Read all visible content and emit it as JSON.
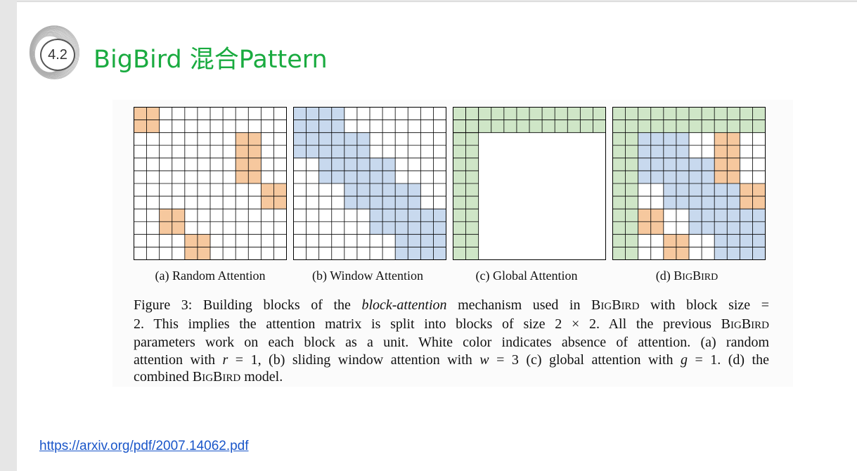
{
  "slide": {
    "section_number": "4.2",
    "title": "BigBird 混合Pattern",
    "link": "https://arxiv.org/pdf/2007.14062.pdf"
  },
  "colors": {
    "title": "#1aab40",
    "random": "#f6c89e",
    "window": "#c8d9ee",
    "global": "#cfe6c7",
    "grid_line": "#000000",
    "link": "#1a56c9"
  },
  "figure": {
    "grid_size": 12,
    "panels": [
      {
        "id": "random",
        "caption": "(a) Random Attention",
        "cells": [
          {
            "r": 0,
            "c": 0,
            "t": "random"
          },
          {
            "r": 0,
            "c": 1,
            "t": "random"
          },
          {
            "r": 1,
            "c": 0,
            "t": "random"
          },
          {
            "r": 1,
            "c": 1,
            "t": "random"
          },
          {
            "r": 2,
            "c": 8,
            "t": "random"
          },
          {
            "r": 2,
            "c": 9,
            "t": "random"
          },
          {
            "r": 3,
            "c": 8,
            "t": "random"
          },
          {
            "r": 3,
            "c": 9,
            "t": "random"
          },
          {
            "r": 4,
            "c": 8,
            "t": "random"
          },
          {
            "r": 4,
            "c": 9,
            "t": "random"
          },
          {
            "r": 5,
            "c": 8,
            "t": "random"
          },
          {
            "r": 5,
            "c": 9,
            "t": "random"
          },
          {
            "r": 6,
            "c": 10,
            "t": "random"
          },
          {
            "r": 6,
            "c": 11,
            "t": "random"
          },
          {
            "r": 7,
            "c": 10,
            "t": "random"
          },
          {
            "r": 7,
            "c": 11,
            "t": "random"
          },
          {
            "r": 8,
            "c": 2,
            "t": "random"
          },
          {
            "r": 8,
            "c": 3,
            "t": "random"
          },
          {
            "r": 9,
            "c": 2,
            "t": "random"
          },
          {
            "r": 9,
            "c": 3,
            "t": "random"
          },
          {
            "r": 10,
            "c": 4,
            "t": "random"
          },
          {
            "r": 10,
            "c": 5,
            "t": "random"
          },
          {
            "r": 11,
            "c": 4,
            "t": "random"
          },
          {
            "r": 11,
            "c": 5,
            "t": "random"
          }
        ]
      },
      {
        "id": "window",
        "caption": "(b) Window Attention",
        "cells": [
          {
            "r": 0,
            "c": 0,
            "t": "window"
          },
          {
            "r": 0,
            "c": 1,
            "t": "window"
          },
          {
            "r": 0,
            "c": 2,
            "t": "window"
          },
          {
            "r": 0,
            "c": 3,
            "t": "window"
          },
          {
            "r": 1,
            "c": 0,
            "t": "window"
          },
          {
            "r": 1,
            "c": 1,
            "t": "window"
          },
          {
            "r": 1,
            "c": 2,
            "t": "window"
          },
          {
            "r": 1,
            "c": 3,
            "t": "window"
          },
          {
            "r": 2,
            "c": 0,
            "t": "window"
          },
          {
            "r": 2,
            "c": 1,
            "t": "window"
          },
          {
            "r": 2,
            "c": 2,
            "t": "window"
          },
          {
            "r": 2,
            "c": 3,
            "t": "window"
          },
          {
            "r": 2,
            "c": 4,
            "t": "window"
          },
          {
            "r": 2,
            "c": 5,
            "t": "window"
          },
          {
            "r": 3,
            "c": 0,
            "t": "window"
          },
          {
            "r": 3,
            "c": 1,
            "t": "window"
          },
          {
            "r": 3,
            "c": 2,
            "t": "window"
          },
          {
            "r": 3,
            "c": 3,
            "t": "window"
          },
          {
            "r": 3,
            "c": 4,
            "t": "window"
          },
          {
            "r": 3,
            "c": 5,
            "t": "window"
          },
          {
            "r": 4,
            "c": 2,
            "t": "window"
          },
          {
            "r": 4,
            "c": 3,
            "t": "window"
          },
          {
            "r": 4,
            "c": 4,
            "t": "window"
          },
          {
            "r": 4,
            "c": 5,
            "t": "window"
          },
          {
            "r": 4,
            "c": 6,
            "t": "window"
          },
          {
            "r": 4,
            "c": 7,
            "t": "window"
          },
          {
            "r": 5,
            "c": 2,
            "t": "window"
          },
          {
            "r": 5,
            "c": 3,
            "t": "window"
          },
          {
            "r": 5,
            "c": 4,
            "t": "window"
          },
          {
            "r": 5,
            "c": 5,
            "t": "window"
          },
          {
            "r": 5,
            "c": 6,
            "t": "window"
          },
          {
            "r": 5,
            "c": 7,
            "t": "window"
          },
          {
            "r": 6,
            "c": 4,
            "t": "window"
          },
          {
            "r": 6,
            "c": 5,
            "t": "window"
          },
          {
            "r": 6,
            "c": 6,
            "t": "window"
          },
          {
            "r": 6,
            "c": 7,
            "t": "window"
          },
          {
            "r": 6,
            "c": 8,
            "t": "window"
          },
          {
            "r": 6,
            "c": 9,
            "t": "window"
          },
          {
            "r": 7,
            "c": 4,
            "t": "window"
          },
          {
            "r": 7,
            "c": 5,
            "t": "window"
          },
          {
            "r": 7,
            "c": 6,
            "t": "window"
          },
          {
            "r": 7,
            "c": 7,
            "t": "window"
          },
          {
            "r": 7,
            "c": 8,
            "t": "window"
          },
          {
            "r": 7,
            "c": 9,
            "t": "window"
          },
          {
            "r": 8,
            "c": 6,
            "t": "window"
          },
          {
            "r": 8,
            "c": 7,
            "t": "window"
          },
          {
            "r": 8,
            "c": 8,
            "t": "window"
          },
          {
            "r": 8,
            "c": 9,
            "t": "window"
          },
          {
            "r": 8,
            "c": 10,
            "t": "window"
          },
          {
            "r": 8,
            "c": 11,
            "t": "window"
          },
          {
            "r": 9,
            "c": 6,
            "t": "window"
          },
          {
            "r": 9,
            "c": 7,
            "t": "window"
          },
          {
            "r": 9,
            "c": 8,
            "t": "window"
          },
          {
            "r": 9,
            "c": 9,
            "t": "window"
          },
          {
            "r": 9,
            "c": 10,
            "t": "window"
          },
          {
            "r": 9,
            "c": 11,
            "t": "window"
          },
          {
            "r": 10,
            "c": 8,
            "t": "window"
          },
          {
            "r": 10,
            "c": 9,
            "t": "window"
          },
          {
            "r": 10,
            "c": 10,
            "t": "window"
          },
          {
            "r": 10,
            "c": 11,
            "t": "window"
          },
          {
            "r": 11,
            "c": 8,
            "t": "window"
          },
          {
            "r": 11,
            "c": 9,
            "t": "window"
          },
          {
            "r": 11,
            "c": 10,
            "t": "window"
          },
          {
            "r": 11,
            "c": 11,
            "t": "window"
          }
        ]
      },
      {
        "id": "global",
        "caption": "(c) Global Attention",
        "global_blocks": 1,
        "cells": []
      },
      {
        "id": "bigbird",
        "caption_prefix": "(d) B",
        "caption_sc1": "IG",
        "caption_mid": "B",
        "caption_sc2": "IRD",
        "global_blocks": 1,
        "cells": [
          {
            "r": 0,
            "c": 2,
            "t": "window"
          },
          {
            "r": 0,
            "c": 3,
            "t": "window"
          },
          {
            "r": 1,
            "c": 2,
            "t": "window"
          },
          {
            "r": 1,
            "c": 3,
            "t": "window"
          },
          {
            "r": 2,
            "c": 2,
            "t": "window"
          },
          {
            "r": 2,
            "c": 3,
            "t": "window"
          },
          {
            "r": 2,
            "c": 4,
            "t": "window"
          },
          {
            "r": 2,
            "c": 5,
            "t": "window"
          },
          {
            "r": 3,
            "c": 2,
            "t": "window"
          },
          {
            "r": 3,
            "c": 3,
            "t": "window"
          },
          {
            "r": 3,
            "c": 4,
            "t": "window"
          },
          {
            "r": 3,
            "c": 5,
            "t": "window"
          },
          {
            "r": 4,
            "c": 2,
            "t": "window"
          },
          {
            "r": 4,
            "c": 3,
            "t": "window"
          },
          {
            "r": 4,
            "c": 4,
            "t": "window"
          },
          {
            "r": 4,
            "c": 5,
            "t": "window"
          },
          {
            "r": 4,
            "c": 6,
            "t": "window"
          },
          {
            "r": 4,
            "c": 7,
            "t": "window"
          },
          {
            "r": 5,
            "c": 2,
            "t": "window"
          },
          {
            "r": 5,
            "c": 3,
            "t": "window"
          },
          {
            "r": 5,
            "c": 4,
            "t": "window"
          },
          {
            "r": 5,
            "c": 5,
            "t": "window"
          },
          {
            "r": 5,
            "c": 6,
            "t": "window"
          },
          {
            "r": 5,
            "c": 7,
            "t": "window"
          },
          {
            "r": 6,
            "c": 4,
            "t": "window"
          },
          {
            "r": 6,
            "c": 5,
            "t": "window"
          },
          {
            "r": 6,
            "c": 6,
            "t": "window"
          },
          {
            "r": 6,
            "c": 7,
            "t": "window"
          },
          {
            "r": 6,
            "c": 8,
            "t": "window"
          },
          {
            "r": 6,
            "c": 9,
            "t": "window"
          },
          {
            "r": 7,
            "c": 4,
            "t": "window"
          },
          {
            "r": 7,
            "c": 5,
            "t": "window"
          },
          {
            "r": 7,
            "c": 6,
            "t": "window"
          },
          {
            "r": 7,
            "c": 7,
            "t": "window"
          },
          {
            "r": 7,
            "c": 8,
            "t": "window"
          },
          {
            "r": 7,
            "c": 9,
            "t": "window"
          },
          {
            "r": 8,
            "c": 6,
            "t": "window"
          },
          {
            "r": 8,
            "c": 7,
            "t": "window"
          },
          {
            "r": 8,
            "c": 8,
            "t": "window"
          },
          {
            "r": 8,
            "c": 9,
            "t": "window"
          },
          {
            "r": 8,
            "c": 10,
            "t": "window"
          },
          {
            "r": 8,
            "c": 11,
            "t": "window"
          },
          {
            "r": 9,
            "c": 6,
            "t": "window"
          },
          {
            "r": 9,
            "c": 7,
            "t": "window"
          },
          {
            "r": 9,
            "c": 8,
            "t": "window"
          },
          {
            "r": 9,
            "c": 9,
            "t": "window"
          },
          {
            "r": 9,
            "c": 10,
            "t": "window"
          },
          {
            "r": 9,
            "c": 11,
            "t": "window"
          },
          {
            "r": 10,
            "c": 8,
            "t": "window"
          },
          {
            "r": 10,
            "c": 9,
            "t": "window"
          },
          {
            "r": 10,
            "c": 10,
            "t": "window"
          },
          {
            "r": 10,
            "c": 11,
            "t": "window"
          },
          {
            "r": 11,
            "c": 8,
            "t": "window"
          },
          {
            "r": 11,
            "c": 9,
            "t": "window"
          },
          {
            "r": 11,
            "c": 10,
            "t": "window"
          },
          {
            "r": 11,
            "c": 11,
            "t": "window"
          },
          {
            "r": 2,
            "c": 8,
            "t": "random"
          },
          {
            "r": 2,
            "c": 9,
            "t": "random"
          },
          {
            "r": 3,
            "c": 8,
            "t": "random"
          },
          {
            "r": 3,
            "c": 9,
            "t": "random"
          },
          {
            "r": 4,
            "c": 8,
            "t": "random"
          },
          {
            "r": 4,
            "c": 9,
            "t": "random"
          },
          {
            "r": 5,
            "c": 8,
            "t": "random"
          },
          {
            "r": 5,
            "c": 9,
            "t": "random"
          },
          {
            "r": 6,
            "c": 10,
            "t": "random"
          },
          {
            "r": 6,
            "c": 11,
            "t": "random"
          },
          {
            "r": 7,
            "c": 10,
            "t": "random"
          },
          {
            "r": 7,
            "c": 11,
            "t": "random"
          },
          {
            "r": 8,
            "c": 2,
            "t": "random"
          },
          {
            "r": 8,
            "c": 3,
            "t": "random"
          },
          {
            "r": 9,
            "c": 2,
            "t": "random"
          },
          {
            "r": 9,
            "c": 3,
            "t": "random"
          },
          {
            "r": 10,
            "c": 4,
            "t": "random"
          },
          {
            "r": 10,
            "c": 5,
            "t": "random"
          },
          {
            "r": 11,
            "c": 4,
            "t": "random"
          },
          {
            "r": 11,
            "c": 5,
            "t": "random"
          }
        ]
      }
    ],
    "caption_lines": [
      {
        "parts": [
          {
            "text": "Figure 3: Building blocks of the ",
            "style": "normal"
          },
          {
            "text": "block-attention",
            "style": "italic"
          },
          {
            "text": " mechanism used in B",
            "style": "normal"
          },
          {
            "text": "IG",
            "style": "sc"
          },
          {
            "text": "B",
            "style": "normal"
          },
          {
            "text": "IRD",
            "style": "sc"
          },
          {
            "text": " with block size =",
            "style": "normal"
          }
        ]
      },
      {
        "parts": [
          {
            "text": "2. This implies the attention matrix is split into blocks of size 2 × 2. All the previous B",
            "style": "normal"
          },
          {
            "text": "IG",
            "style": "sc"
          },
          {
            "text": "B",
            "style": "normal"
          },
          {
            "text": "IRD",
            "style": "sc"
          }
        ]
      },
      {
        "parts": [
          {
            "text": "parameters work on each block as a unit. White color indicates absence of attention. (a) random",
            "style": "normal"
          }
        ]
      },
      {
        "parts": [
          {
            "text": "attention with ",
            "style": "normal"
          },
          {
            "text": "r",
            "style": "italic"
          },
          {
            "text": " = 1, (b) sliding window attention with ",
            "style": "normal"
          },
          {
            "text": "w",
            "style": "italic"
          },
          {
            "text": " = 3 (c) global attention with ",
            "style": "normal"
          },
          {
            "text": "g",
            "style": "italic"
          },
          {
            "text": " = 1. (d) the",
            "style": "normal"
          }
        ]
      },
      {
        "parts": [
          {
            "text": "combined B",
            "style": "normal"
          },
          {
            "text": "IG",
            "style": "sc"
          },
          {
            "text": "B",
            "style": "normal"
          },
          {
            "text": "IRD",
            "style": "sc"
          },
          {
            "text": " model.",
            "style": "normal"
          }
        ]
      }
    ]
  }
}
